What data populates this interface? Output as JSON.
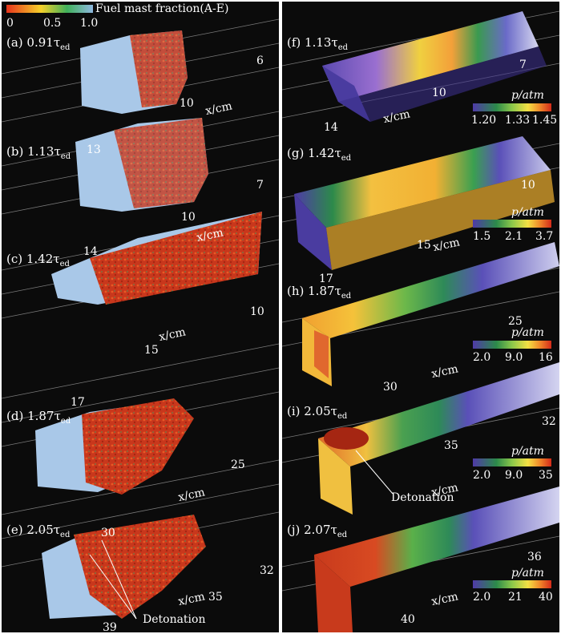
{
  "left_panel": {
    "colorbar": {
      "title": "Fuel mast fraction(A-E)",
      "ticks": [
        "0",
        "0.5",
        "1.0"
      ],
      "colors": [
        "#e8341c",
        "#f5d12a",
        "#3fb05a",
        "#8fb8e0"
      ]
    },
    "rows": [
      {
        "label": "(a) 0.91τ",
        "sub": "ed",
        "ticks": [
          "6",
          "10",
          "13"
        ],
        "axis": "x/cm"
      },
      {
        "label": "(b) 1.13τ",
        "sub": "ed",
        "ticks": [
          "7",
          "10",
          "14"
        ],
        "axis": "x/cm"
      },
      {
        "label": "(c) 1.42τ",
        "sub": "ed",
        "ticks": [
          "10",
          "15",
          "17"
        ],
        "axis": "x/cm"
      },
      {
        "label": "(d) 1.87τ",
        "sub": "ed",
        "ticks": [
          "25",
          "30"
        ],
        "axis": "x/cm"
      },
      {
        "label": "(e) 2.05τ",
        "sub": "ed",
        "ticks": [
          "32",
          "35",
          "39"
        ],
        "axis": "x/cm",
        "annotation": "Detonation"
      }
    ]
  },
  "right_panel": {
    "rows": [
      {
        "label": "(f) 1.13τ",
        "sub": "ed",
        "ticks": [
          "7",
          "10",
          "14"
        ],
        "axis": "x/cm",
        "colorbar": {
          "title": "p/atm",
          "ticks": [
            "1.20",
            "1.33",
            "1.45"
          ]
        }
      },
      {
        "label": "(g) 1.42τ",
        "sub": "ed",
        "ticks": [
          "10",
          "15",
          "17"
        ],
        "axis": "x/cm",
        "colorbar": {
          "title": "p/atm",
          "ticks": [
            "1.5",
            "2.1",
            "3.7"
          ]
        }
      },
      {
        "label": "(h) 1.87τ",
        "sub": "ed",
        "ticks": [
          "25",
          "30"
        ],
        "axis": "x/cm",
        "colorbar": {
          "title": "p/atm",
          "ticks": [
            "2.0",
            "9.0",
            "16"
          ]
        }
      },
      {
        "label": "(i) 2.05τ",
        "sub": "ed",
        "ticks": [
          "32",
          "35"
        ],
        "axis": "x/cm",
        "colorbar": {
          "title": "p/atm",
          "ticks": [
            "2.0",
            "9.0",
            "35"
          ]
        },
        "annotation": "Detonation"
      },
      {
        "label": "(j) 2.07τ",
        "sub": "ed",
        "ticks": [
          "36",
          "40"
        ],
        "axis": "x/cm",
        "colorbar": {
          "title": "p/atm",
          "ticks": [
            "2.0",
            "21",
            "40"
          ]
        }
      }
    ],
    "pressure_colors": [
      "#4f3aa8",
      "#2c8a4a",
      "#8cc84a",
      "#f3e044",
      "#f08a2a",
      "#d42a1a"
    ]
  }
}
